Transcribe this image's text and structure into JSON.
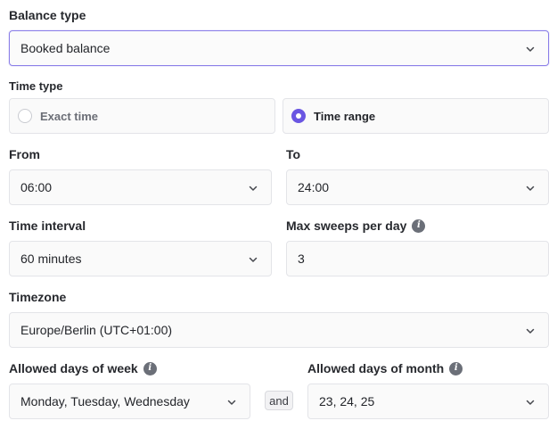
{
  "balance_type": {
    "label": "Balance type",
    "value": "Booked balance"
  },
  "time_type": {
    "label": "Time type",
    "options": [
      {
        "label": "Exact time",
        "selected": false
      },
      {
        "label": "Time range",
        "selected": true
      }
    ]
  },
  "from": {
    "label": "From",
    "value": "06:00"
  },
  "to": {
    "label": "To",
    "value": "24:00"
  },
  "time_interval": {
    "label": "Time interval",
    "value": "60 minutes"
  },
  "max_sweeps": {
    "label": "Max sweeps per day",
    "value": "3",
    "info_icon": "info-icon"
  },
  "timezone": {
    "label": "Timezone",
    "value": "Europe/Berlin (UTC+01:00)"
  },
  "days_of_week": {
    "label": "Allowed days of week",
    "value": "Monday, Tuesday, Wednesday",
    "info_icon": "info-icon"
  },
  "connector": "and",
  "days_of_month": {
    "label": "Allowed days of month",
    "value": "23, 24, 25",
    "info_icon": "info-icon"
  },
  "colors": {
    "accent": "#6a56e2",
    "focus_border": "#8b7fe8",
    "field_border": "#e3e4e8"
  }
}
